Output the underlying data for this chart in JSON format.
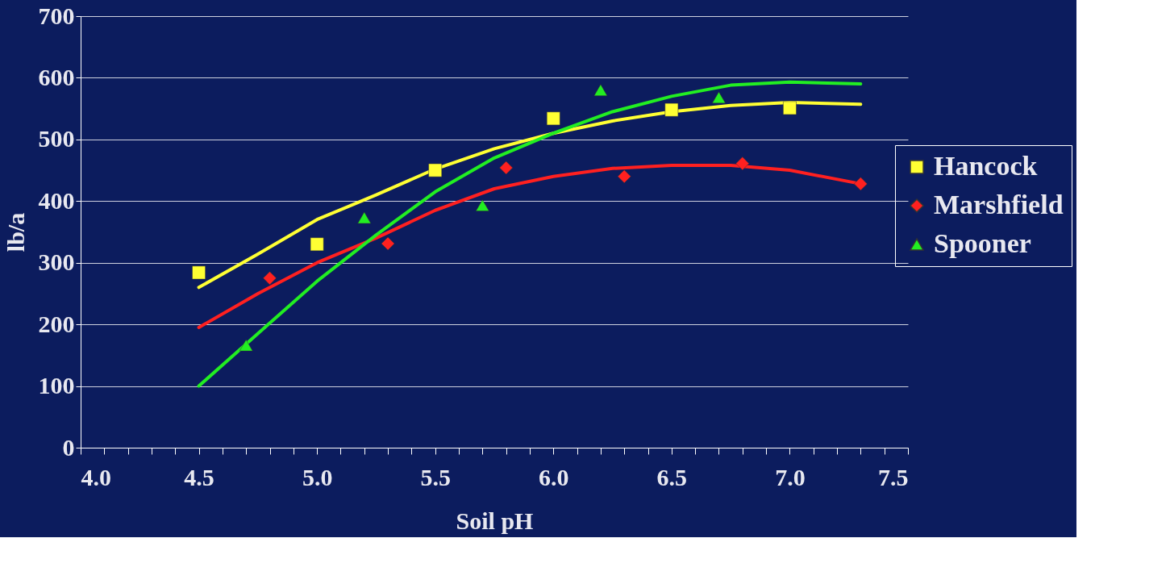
{
  "chart_data": {
    "type": "scatter",
    "xlabel": "Soil pH",
    "ylabel": "lb/a",
    "xlim": [
      4.0,
      7.5
    ],
    "ylim": [
      0,
      700
    ],
    "xticks": [
      {
        "value": 4.0,
        "label": "4.0"
      },
      {
        "value": 4.1,
        "label": null
      },
      {
        "value": 4.2,
        "label": null
      },
      {
        "value": 4.3,
        "label": null
      },
      {
        "value": 4.4,
        "label": null
      },
      {
        "value": 4.5,
        "label": "4.5"
      },
      {
        "value": 4.6,
        "label": null
      },
      {
        "value": 4.7,
        "label": null
      },
      {
        "value": 4.8,
        "label": null
      },
      {
        "value": 4.9,
        "label": null
      },
      {
        "value": 5.0,
        "label": "5.0"
      },
      {
        "value": 5.1,
        "label": null
      },
      {
        "value": 5.2,
        "label": null
      },
      {
        "value": 5.3,
        "label": null
      },
      {
        "value": 5.4,
        "label": null
      },
      {
        "value": 5.5,
        "label": "5.5"
      },
      {
        "value": 5.6,
        "label": null
      },
      {
        "value": 5.7,
        "label": null
      },
      {
        "value": 5.8,
        "label": null
      },
      {
        "value": 5.9,
        "label": null
      },
      {
        "value": 6.0,
        "label": "6.0"
      },
      {
        "value": 6.1,
        "label": null
      },
      {
        "value": 6.2,
        "label": null
      },
      {
        "value": 6.3,
        "label": null
      },
      {
        "value": 6.4,
        "label": null
      },
      {
        "value": 6.5,
        "label": "6.5"
      },
      {
        "value": 6.6,
        "label": null
      },
      {
        "value": 6.7,
        "label": null
      },
      {
        "value": 6.8,
        "label": null
      },
      {
        "value": 6.9,
        "label": null
      },
      {
        "value": 7.0,
        "label": "7.0"
      },
      {
        "value": 7.1,
        "label": null
      },
      {
        "value": 7.2,
        "label": null
      },
      {
        "value": 7.3,
        "label": null
      },
      {
        "value": 7.4,
        "label": null
      },
      {
        "value": 7.5,
        "label": "7.5"
      }
    ],
    "yticks": [
      0,
      100,
      200,
      300,
      400,
      500,
      600,
      700
    ],
    "grid": "y",
    "legend": "right",
    "series": [
      {
        "type": "line",
        "color": "#ffff33",
        "line_style": "solid",
        "marker": "none",
        "x": [
          4.5,
          4.75,
          5.0,
          5.25,
          5.5,
          5.75,
          6.0,
          6.25,
          6.5,
          6.75,
          7.0,
          7.3
        ],
        "values": [
          260,
          314,
          370,
          410,
          452,
          485,
          510,
          530,
          545,
          555,
          560,
          557
        ]
      },
      {
        "type": "line",
        "color": "#ff2020",
        "line_style": "solid",
        "marker": "none",
        "x": [
          4.5,
          4.75,
          5.0,
          5.25,
          5.5,
          5.75,
          6.0,
          6.25,
          6.5,
          6.75,
          7.0,
          7.3
        ],
        "values": [
          195,
          250,
          300,
          340,
          385,
          420,
          440,
          453,
          458,
          458,
          450,
          428
        ]
      },
      {
        "type": "line",
        "color": "#22ee22",
        "line_style": "solid",
        "marker": "none",
        "x": [
          4.5,
          4.75,
          5.0,
          5.25,
          5.5,
          5.75,
          6.0,
          6.25,
          6.5,
          6.75,
          7.0,
          7.3
        ],
        "values": [
          100,
          185,
          270,
          345,
          415,
          470,
          510,
          545,
          570,
          588,
          593,
          590
        ]
      },
      {
        "name": "Hancock",
        "color": "#ffff33",
        "marker": "square",
        "x": [
          4.5,
          5.0,
          5.5,
          6.0,
          6.5,
          7.0
        ],
        "values": [
          284,
          330,
          450,
          534,
          548,
          551
        ]
      },
      {
        "name": "Marshfield",
        "color": "#ff2020",
        "marker": "diamond",
        "x": [
          4.8,
          5.3,
          5.8,
          6.3,
          6.8,
          7.3
        ],
        "values": [
          275,
          331,
          454,
          440,
          461,
          428
        ]
      },
      {
        "name": "Spooner",
        "color": "#22ee22",
        "marker": "triangle",
        "x": [
          4.7,
          5.2,
          5.7,
          6.2,
          6.7
        ],
        "values": [
          166,
          373,
          393,
          580,
          568
        ]
      }
    ]
  }
}
